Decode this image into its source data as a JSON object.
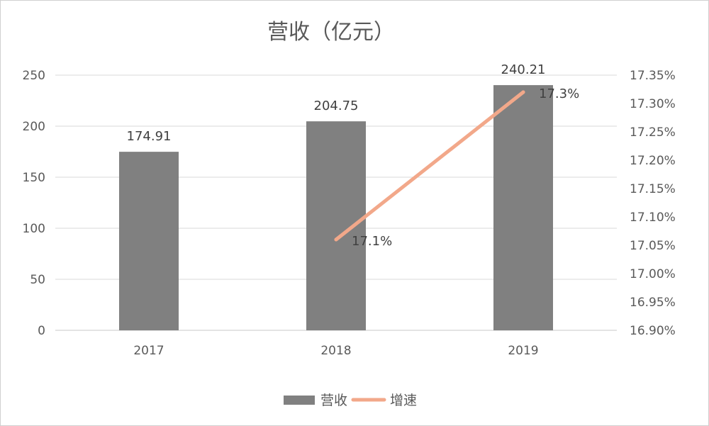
{
  "chart_data": {
    "type": "bar",
    "title": "营收（亿元）",
    "categories": [
      "2017",
      "2018",
      "2019"
    ],
    "series": [
      {
        "name": "营收",
        "type": "bar",
        "axis": "left",
        "values": [
          174.91,
          204.75,
          240.21
        ],
        "labels": [
          "174.91",
          "204.75",
          "240.21"
        ],
        "color": "#808080"
      },
      {
        "name": "增速",
        "type": "line",
        "axis": "right",
        "values": [
          null,
          17.06,
          17.32
        ],
        "labels": [
          "",
          "17.1%",
          "17.3%"
        ],
        "color": "#f2a88a"
      }
    ],
    "y_left": {
      "min": 0,
      "max": 250,
      "step": 50,
      "ticks": [
        "0",
        "50",
        "100",
        "150",
        "200",
        "250"
      ]
    },
    "y_right": {
      "min": 16.9,
      "max": 17.35,
      "step": 0.05,
      "ticks": [
        "16.90%",
        "16.95%",
        "17.00%",
        "17.05%",
        "17.10%",
        "17.15%",
        "17.20%",
        "17.25%",
        "17.30%",
        "17.35%"
      ]
    },
    "grid": true,
    "legend_position": "bottom"
  }
}
